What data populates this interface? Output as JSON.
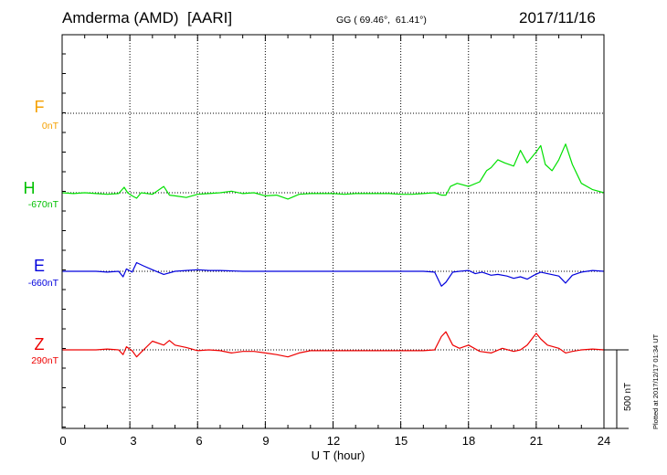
{
  "header": {
    "station": "Amderma (AMD)  [AARI]",
    "coords": "GG ( 69.46°,  61.41°)",
    "date": "2017/11/16",
    "plotted": "Plotted at 2017/12/17 01:34 UT"
  },
  "chart_data": {
    "type": "line",
    "xlabel": "U T (hour)",
    "xlim": [
      0,
      24
    ],
    "x_ticks": [
      "0",
      "3",
      "6",
      "9",
      "12",
      "15",
      "18",
      "21",
      "24"
    ],
    "scale_label": "500 nT",
    "grid": true,
    "components": [
      {
        "name": "F",
        "baseline": "0nT",
        "color": "#f5a000",
        "points": []
      },
      {
        "name": "H",
        "baseline": "-670nT",
        "color": "#00e000",
        "points": [
          [
            0,
            0
          ],
          [
            0.5,
            -5
          ],
          [
            1,
            0
          ],
          [
            1.5,
            -5
          ],
          [
            2,
            -10
          ],
          [
            2.5,
            -5
          ],
          [
            2.75,
            35
          ],
          [
            2.9,
            0
          ],
          [
            3.1,
            -20
          ],
          [
            3.3,
            -35
          ],
          [
            3.5,
            0
          ],
          [
            4,
            -10
          ],
          [
            4.5,
            40
          ],
          [
            4.75,
            -15
          ],
          [
            5,
            -20
          ],
          [
            5.5,
            -30
          ],
          [
            6,
            -10
          ],
          [
            6.5,
            -5
          ],
          [
            7,
            0
          ],
          [
            7.5,
            10
          ],
          [
            8,
            -5
          ],
          [
            8.5,
            0
          ],
          [
            9,
            -20
          ],
          [
            9.5,
            -15
          ],
          [
            10,
            -40
          ],
          [
            10.5,
            -10
          ],
          [
            11,
            -5
          ],
          [
            11.5,
            -5
          ],
          [
            12,
            -5
          ],
          [
            12.5,
            -10
          ],
          [
            13,
            -5
          ],
          [
            13.5,
            -5
          ],
          [
            14,
            -5
          ],
          [
            14.5,
            -5
          ],
          [
            15,
            -10
          ],
          [
            15.5,
            -10
          ],
          [
            16,
            -5
          ],
          [
            16.5,
            0
          ],
          [
            16.8,
            -15
          ],
          [
            17,
            -15
          ],
          [
            17.2,
            40
          ],
          [
            17.5,
            60
          ],
          [
            18,
            40
          ],
          [
            18.5,
            70
          ],
          [
            18.8,
            140
          ],
          [
            19,
            160
          ],
          [
            19.3,
            210
          ],
          [
            19.6,
            190
          ],
          [
            20,
            170
          ],
          [
            20.3,
            270
          ],
          [
            20.6,
            190
          ],
          [
            21,
            260
          ],
          [
            21.2,
            300
          ],
          [
            21.4,
            180
          ],
          [
            21.7,
            140
          ],
          [
            22,
            210
          ],
          [
            22.3,
            310
          ],
          [
            22.6,
            180
          ],
          [
            23,
            60
          ],
          [
            23.5,
            20
          ],
          [
            24,
            0
          ]
        ]
      },
      {
        "name": "E",
        "baseline": "-660nT",
        "color": "#0000dd",
        "points": [
          [
            0,
            0
          ],
          [
            0.5,
            0
          ],
          [
            1,
            0
          ],
          [
            1.5,
            0
          ],
          [
            2,
            -5
          ],
          [
            2.5,
            0
          ],
          [
            2.7,
            -35
          ],
          [
            2.85,
            15
          ],
          [
            3.1,
            -5
          ],
          [
            3.3,
            55
          ],
          [
            3.6,
            35
          ],
          [
            4,
            10
          ],
          [
            4.5,
            -20
          ],
          [
            5,
            0
          ],
          [
            5.5,
            5
          ],
          [
            6,
            10
          ],
          [
            6.5,
            5
          ],
          [
            7,
            5
          ],
          [
            8,
            0
          ],
          [
            9,
            0
          ],
          [
            10,
            0
          ],
          [
            11,
            0
          ],
          [
            12,
            0
          ],
          [
            13,
            0
          ],
          [
            14,
            0
          ],
          [
            15,
            0
          ],
          [
            16,
            0
          ],
          [
            16.5,
            -5
          ],
          [
            16.8,
            -95
          ],
          [
            17,
            -70
          ],
          [
            17.3,
            -5
          ],
          [
            17.6,
            0
          ],
          [
            18,
            5
          ],
          [
            18.3,
            -15
          ],
          [
            18.6,
            -5
          ],
          [
            19,
            -25
          ],
          [
            19.3,
            -20
          ],
          [
            19.7,
            -30
          ],
          [
            20,
            -45
          ],
          [
            20.3,
            -35
          ],
          [
            20.6,
            -50
          ],
          [
            20.9,
            -25
          ],
          [
            21.2,
            -5
          ],
          [
            21.5,
            -15
          ],
          [
            22,
            -30
          ],
          [
            22.3,
            -75
          ],
          [
            22.6,
            -25
          ],
          [
            23,
            -5
          ],
          [
            23.5,
            5
          ],
          [
            24,
            0
          ]
        ]
      },
      {
        "name": "Z",
        "baseline": "290nT",
        "color": "#ee0000",
        "points": [
          [
            0,
            0
          ],
          [
            0.5,
            0
          ],
          [
            1,
            0
          ],
          [
            1.5,
            0
          ],
          [
            2,
            5
          ],
          [
            2.5,
            0
          ],
          [
            2.7,
            -30
          ],
          [
            2.85,
            20
          ],
          [
            3.1,
            -5
          ],
          [
            3.3,
            -45
          ],
          [
            3.5,
            -15
          ],
          [
            4,
            55
          ],
          [
            4.5,
            30
          ],
          [
            4.75,
            60
          ],
          [
            5,
            30
          ],
          [
            5.5,
            15
          ],
          [
            6,
            -5
          ],
          [
            6.5,
            0
          ],
          [
            7,
            -5
          ],
          [
            7.5,
            -20
          ],
          [
            8,
            -10
          ],
          [
            8.5,
            -10
          ],
          [
            9,
            -20
          ],
          [
            9.5,
            -30
          ],
          [
            10,
            -45
          ],
          [
            10.5,
            -20
          ],
          [
            11,
            -5
          ],
          [
            12,
            -5
          ],
          [
            13,
            -5
          ],
          [
            14,
            -5
          ],
          [
            15,
            -5
          ],
          [
            16,
            -5
          ],
          [
            16.5,
            0
          ],
          [
            16.8,
            85
          ],
          [
            17,
            115
          ],
          [
            17.3,
            30
          ],
          [
            17.6,
            10
          ],
          [
            18,
            30
          ],
          [
            18.5,
            -10
          ],
          [
            19,
            -20
          ],
          [
            19.5,
            10
          ],
          [
            20,
            -10
          ],
          [
            20.3,
            0
          ],
          [
            20.6,
            30
          ],
          [
            21,
            105
          ],
          [
            21.2,
            70
          ],
          [
            21.5,
            30
          ],
          [
            22,
            10
          ],
          [
            22.3,
            -20
          ],
          [
            22.6,
            -10
          ],
          [
            23,
            0
          ],
          [
            23.5,
            5
          ],
          [
            24,
            0
          ]
        ]
      }
    ]
  }
}
